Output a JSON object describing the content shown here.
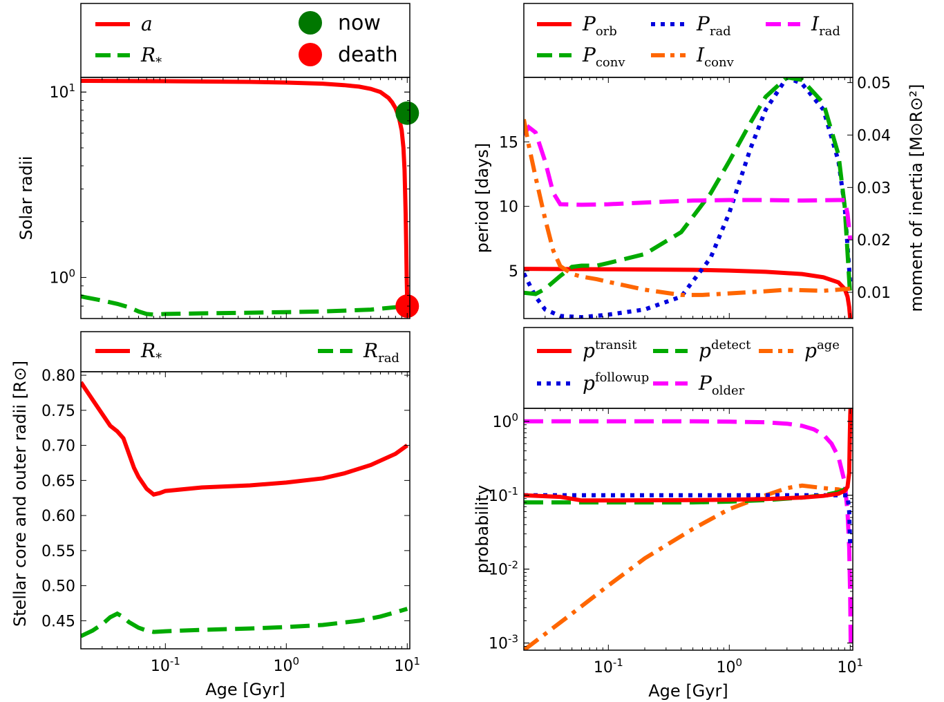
{
  "colors": {
    "red": "#ff0000",
    "green": "#00aa00",
    "blue": "#0000dd",
    "magenta": "#ff00ff",
    "orange": "#ff6600",
    "dark_green": "#007700"
  },
  "chart_data": [
    {
      "id": "tl",
      "type": "line",
      "xscale": "log",
      "yscale": "log",
      "xlim": [
        0.02,
        10.5
      ],
      "ylim": [
        0.6,
        12
      ],
      "xlabel": "",
      "ylabel": "Solar radii",
      "yticks": [
        {
          "v": 1,
          "base": "10",
          "exp": "0"
        },
        {
          "v": 10,
          "base": "10",
          "exp": "1"
        }
      ],
      "xticks": [],
      "legend": [
        {
          "text": "a",
          "sub": "",
          "color": "#ff0000",
          "dash": "solid"
        },
        {
          "text": "R",
          "sub": "*",
          "color": "#00aa00",
          "dash": "dashed"
        }
      ],
      "markers_legend": [
        {
          "label": "now",
          "color": "#007700"
        },
        {
          "label": "death",
          "color": "#ff0000"
        }
      ],
      "markers": [
        {
          "name": "now",
          "x": 10.0,
          "y": 7.7,
          "color": "#007700"
        },
        {
          "name": "death",
          "x": 10.0,
          "y": 0.7,
          "color": "#ff0000"
        }
      ],
      "series": [
        {
          "label": "a",
          "color": "#ff0000",
          "dash": "solid",
          "x": [
            0.02,
            0.1,
            0.5,
            1,
            2,
            3,
            4,
            5,
            6,
            7,
            7.5,
            8,
            8.5,
            9,
            9.3,
            9.5,
            9.7,
            9.8,
            9.9,
            10,
            10.05
          ],
          "y": [
            11.5,
            11.45,
            11.35,
            11.25,
            11.1,
            10.9,
            10.7,
            10.4,
            10.0,
            9.3,
            8.8,
            8.2,
            7.4,
            6.2,
            5.0,
            3.8,
            2.2,
            1.5,
            1.0,
            0.72,
            0.68
          ]
        },
        {
          "label": "R*",
          "color": "#00aa00",
          "dash": "dashed",
          "x": [
            0.02,
            0.03,
            0.04,
            0.05,
            0.06,
            0.07,
            0.08,
            0.1,
            0.2,
            0.5,
            1,
            2,
            5,
            10
          ],
          "y": [
            0.79,
            0.75,
            0.72,
            0.69,
            0.655,
            0.635,
            0.63,
            0.635,
            0.64,
            0.645,
            0.65,
            0.655,
            0.67,
            0.7
          ]
        }
      ]
    },
    {
      "id": "tr",
      "type": "line",
      "xscale": "log",
      "yscale": "linear",
      "xlim": [
        0.02,
        10.5
      ],
      "ylim": [
        1.3,
        20
      ],
      "y2lim": [
        0.005,
        0.051
      ],
      "xlabel": "",
      "ylabel": "period [days]",
      "y2label": "moment of inertia [M⊙R⊙²]",
      "yticks": [
        {
          "v": 5,
          "label": "5"
        },
        {
          "v": 10,
          "label": "10"
        },
        {
          "v": 15,
          "label": "15"
        }
      ],
      "y2ticks": [
        {
          "v": 0.01,
          "label": "0.01"
        },
        {
          "v": 0.02,
          "label": "0.02"
        },
        {
          "v": 0.03,
          "label": "0.03"
        },
        {
          "v": 0.04,
          "label": "0.04"
        },
        {
          "v": 0.05,
          "label": "0.05"
        }
      ],
      "xticks": [],
      "legend": [
        {
          "text": "P",
          "sub": "orb",
          "color": "#ff0000",
          "dash": "solid"
        },
        {
          "text": "P",
          "sub": "rad",
          "color": "#0000dd",
          "dash": "dotted"
        },
        {
          "text": "I",
          "sub": "rad",
          "color": "#ff00ff",
          "dash": "dashed"
        },
        {
          "text": "P",
          "sub": "conv",
          "color": "#00aa00",
          "dash": "dashed"
        },
        {
          "text": "I",
          "sub": "conv",
          "color": "#ff6600",
          "dash": "dashdot"
        }
      ],
      "series": [
        {
          "label": "Porb",
          "color": "#ff0000",
          "dash": "solid",
          "axis": "left",
          "x": [
            0.02,
            0.1,
            0.5,
            1,
            2,
            4,
            6,
            8,
            9,
            9.5,
            9.8,
            10.0
          ],
          "y": [
            5.15,
            5.12,
            5.08,
            5.02,
            4.92,
            4.75,
            4.5,
            4.1,
            3.6,
            3.0,
            2.2,
            1.3
          ]
        },
        {
          "label": "Prad",
          "color": "#0000dd",
          "dash": "dotted",
          "axis": "left",
          "x": [
            0.02,
            0.025,
            0.03,
            0.04,
            0.06,
            0.1,
            0.2,
            0.4,
            0.7,
            1,
            1.5,
            2,
            3,
            4,
            6,
            8,
            9,
            10
          ],
          "y": [
            4.8,
            3.0,
            2.0,
            1.5,
            1.4,
            1.6,
            2.0,
            3.0,
            6.0,
            9.5,
            14.5,
            17.5,
            20,
            19.5,
            17.5,
            13.5,
            10.0,
            4.0
          ]
        },
        {
          "label": "Pconv",
          "color": "#00aa00",
          "dash": "dashed",
          "axis": "left",
          "x": [
            0.02,
            0.025,
            0.03,
            0.04,
            0.05,
            0.06,
            0.08,
            0.1,
            0.2,
            0.4,
            0.7,
            1,
            1.5,
            2,
            3,
            4,
            6,
            8,
            9,
            10
          ],
          "y": [
            3.3,
            3.2,
            3.6,
            4.6,
            5.3,
            5.4,
            5.4,
            5.6,
            6.3,
            8.0,
            11.0,
            13.5,
            16.5,
            18.5,
            20,
            19.8,
            18.0,
            14.0,
            10.0,
            3.0
          ]
        },
        {
          "label": "Irad",
          "color": "#ff00ff",
          "dash": "dashed",
          "axis": "right",
          "x": [
            0.02,
            0.022,
            0.025,
            0.03,
            0.035,
            0.04,
            0.06,
            0.1,
            0.3,
            0.5,
            1,
            2,
            4,
            8,
            9,
            9.5,
            10
          ],
          "y": [
            0.04,
            0.0415,
            0.0405,
            0.035,
            0.029,
            0.0268,
            0.0267,
            0.0268,
            0.0273,
            0.0275,
            0.0276,
            0.0276,
            0.0275,
            0.0276,
            0.0276,
            0.025,
            0.02
          ]
        },
        {
          "label": "Iconv",
          "color": "#ff6600",
          "dash": "dashdot",
          "axis": "right",
          "x": [
            0.02,
            0.022,
            0.025,
            0.03,
            0.035,
            0.04,
            0.05,
            0.06,
            0.08,
            0.1,
            0.2,
            0.4,
            0.6,
            1,
            2,
            3,
            4,
            6,
            8,
            10
          ],
          "y": [
            0.043,
            0.038,
            0.032,
            0.024,
            0.018,
            0.015,
            0.0135,
            0.013,
            0.0125,
            0.012,
            0.0105,
            0.0095,
            0.0095,
            0.0098,
            0.0102,
            0.0105,
            0.0104,
            0.0103,
            0.0105,
            0.0107
          ]
        }
      ]
    },
    {
      "id": "bl",
      "type": "line",
      "xscale": "log",
      "yscale": "linear",
      "xlim": [
        0.02,
        10.5
      ],
      "ylim": [
        0.41,
        0.805
      ],
      "xlabel": "Age [Gyr]",
      "ylabel": "Stellar core and outer radii [R⊙]",
      "yticks": [
        {
          "v": 0.45,
          "label": "0.45"
        },
        {
          "v": 0.5,
          "label": "0.50"
        },
        {
          "v": 0.55,
          "label": "0.55"
        },
        {
          "v": 0.6,
          "label": "0.60"
        },
        {
          "v": 0.65,
          "label": "0.65"
        },
        {
          "v": 0.7,
          "label": "0.70"
        },
        {
          "v": 0.75,
          "label": "0.75"
        },
        {
          "v": 0.8,
          "label": "0.80"
        }
      ],
      "xticks": [
        {
          "v": 0.1,
          "base": "10",
          "exp": "-1"
        },
        {
          "v": 1,
          "base": "10",
          "exp": "0"
        },
        {
          "v": 10,
          "base": "10",
          "exp": "1"
        }
      ],
      "legend": [
        {
          "text": "R",
          "sub": "*",
          "color": "#ff0000",
          "dash": "solid"
        },
        {
          "text": "R",
          "sub": "rad",
          "color": "#00aa00",
          "dash": "dashed"
        }
      ],
      "series": [
        {
          "label": "R*",
          "color": "#ff0000",
          "dash": "solid",
          "x": [
            0.02,
            0.025,
            0.03,
            0.035,
            0.04,
            0.045,
            0.05,
            0.055,
            0.06,
            0.07,
            0.08,
            0.09,
            0.1,
            0.2,
            0.5,
            1,
            2,
            3,
            5,
            8,
            10
          ],
          "y": [
            0.79,
            0.765,
            0.745,
            0.728,
            0.72,
            0.71,
            0.688,
            0.668,
            0.655,
            0.638,
            0.63,
            0.632,
            0.635,
            0.64,
            0.643,
            0.647,
            0.653,
            0.66,
            0.672,
            0.688,
            0.7
          ]
        },
        {
          "label": "Rrad",
          "color": "#00aa00",
          "dash": "dashed",
          "x": [
            0.02,
            0.025,
            0.03,
            0.035,
            0.04,
            0.045,
            0.05,
            0.06,
            0.07,
            0.08,
            0.1,
            0.2,
            0.5,
            1,
            2,
            4,
            6,
            8,
            10
          ],
          "y": [
            0.428,
            0.436,
            0.445,
            0.455,
            0.46,
            0.455,
            0.448,
            0.44,
            0.436,
            0.434,
            0.435,
            0.437,
            0.439,
            0.441,
            0.444,
            0.45,
            0.456,
            0.462,
            0.467
          ]
        }
      ]
    },
    {
      "id": "br",
      "type": "line",
      "xscale": "log",
      "yscale": "log",
      "xlim": [
        0.02,
        10.5
      ],
      "ylim": [
        0.0008,
        1.5
      ],
      "xlabel": "Age [Gyr]",
      "ylabel": "probability",
      "yticks": [
        {
          "v": 0.001,
          "base": "10",
          "exp": "-3"
        },
        {
          "v": 0.01,
          "base": "10",
          "exp": "-2"
        },
        {
          "v": 0.1,
          "base": "10",
          "exp": "-1"
        },
        {
          "v": 1,
          "base": "10",
          "exp": "0"
        }
      ],
      "xticks": [
        {
          "v": 0.1,
          "base": "10",
          "exp": "-1"
        },
        {
          "v": 1,
          "base": "10",
          "exp": "0"
        },
        {
          "v": 10,
          "base": "10",
          "exp": "1"
        }
      ],
      "legend": [
        {
          "text": "p",
          "sup": "transit",
          "color": "#ff0000",
          "dash": "solid"
        },
        {
          "text": "p",
          "sup": "detect",
          "color": "#00aa00",
          "dash": "dashed"
        },
        {
          "text": "p",
          "sup": "age",
          "color": "#ff6600",
          "dash": "dashdot"
        },
        {
          "text": "p",
          "sup": "followup",
          "color": "#0000dd",
          "dash": "dotted"
        },
        {
          "text": "P",
          "sub": "older",
          "color": "#ff00ff",
          "dash": "dashed"
        }
      ],
      "series": [
        {
          "label": "page",
          "color": "#ff6600",
          "dash": "dashdot",
          "x": [
            0.02,
            0.05,
            0.1,
            0.2,
            0.5,
            1,
            2,
            3,
            4,
            6,
            8,
            9.5
          ],
          "y": [
            0.0008,
            0.0025,
            0.006,
            0.014,
            0.035,
            0.065,
            0.1,
            0.125,
            0.135,
            0.125,
            0.12,
            0.11
          ]
        },
        {
          "label": "Polder",
          "color": "#ff00ff",
          "dash": "dashed",
          "x": [
            0.02,
            0.1,
            0.5,
            1,
            2,
            3,
            4,
            5,
            6,
            7,
            8,
            9,
            9.5,
            9.8,
            10.0,
            10.1
          ],
          "y": [
            1.0,
            1.0,
            1.0,
            0.99,
            0.97,
            0.93,
            0.87,
            0.78,
            0.66,
            0.5,
            0.33,
            0.15,
            0.06,
            0.02,
            0.004,
            0.001
          ]
        },
        {
          "label": "pfollowup",
          "color": "#0000dd",
          "dash": "dotted",
          "x": [
            0.02,
            0.05,
            0.1,
            0.5,
            1,
            2,
            4,
            6,
            8,
            9,
            9.5,
            9.8,
            10.0
          ],
          "y": [
            0.1,
            0.1,
            0.1,
            0.1,
            0.1,
            0.1,
            0.1,
            0.1,
            0.1,
            0.1,
            0.1,
            0.06,
            0.02
          ]
        },
        {
          "label": "pdetect",
          "color": "#00aa00",
          "dash": "dashed",
          "x": [
            0.02,
            0.05,
            0.1,
            0.5,
            1,
            2,
            4,
            6,
            8,
            9,
            9.5,
            10.0
          ],
          "y": [
            0.08,
            0.08,
            0.08,
            0.08,
            0.082,
            0.086,
            0.093,
            0.1,
            0.11,
            0.12,
            0.13,
            0.14
          ]
        },
        {
          "label": "ptransit",
          "color": "#ff0000",
          "dash": "solid",
          "x": [
            0.02,
            0.04,
            0.06,
            0.1,
            0.5,
            1,
            2,
            4,
            6,
            8,
            9,
            9.5,
            9.8,
            9.9,
            10.0,
            10.05
          ],
          "y": [
            0.1,
            0.095,
            0.085,
            0.085,
            0.086,
            0.087,
            0.089,
            0.093,
            0.098,
            0.105,
            0.115,
            0.13,
            0.2,
            0.5,
            1.2,
            1.5
          ]
        }
      ]
    }
  ]
}
